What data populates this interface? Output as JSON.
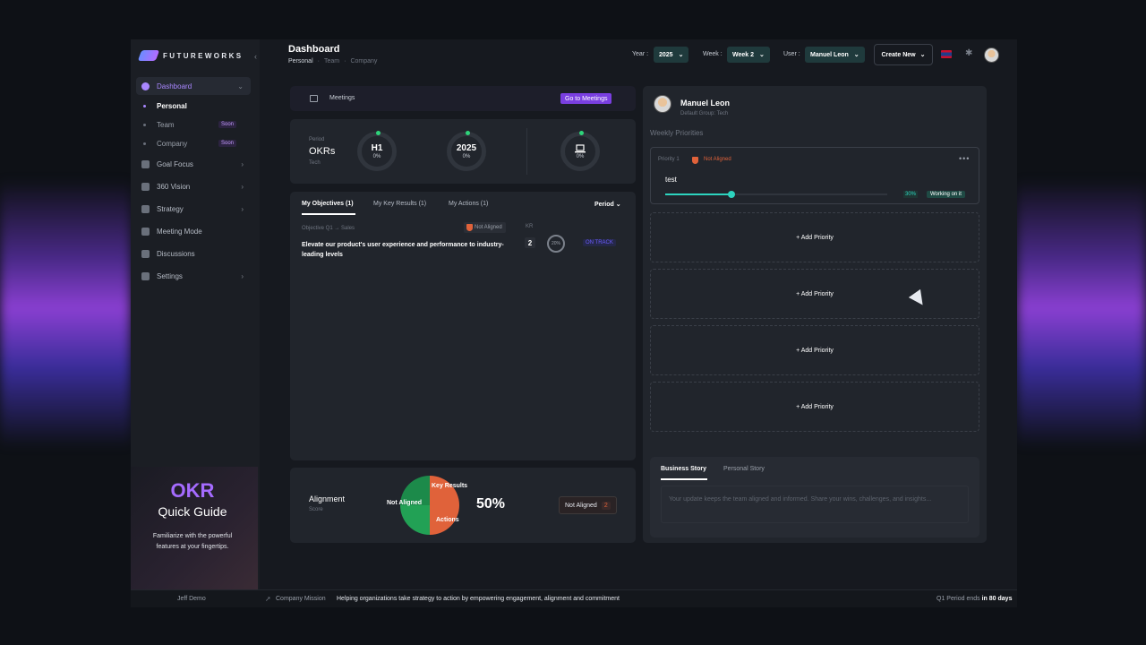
{
  "brand": {
    "name": "FUTUREWORKS"
  },
  "sidebar": {
    "items": [
      {
        "label": "Dashboard",
        "icon": "dashboard-icon",
        "active": true
      },
      {
        "label": "Goal Focus",
        "icon": "target-icon"
      },
      {
        "label": "360 Vision",
        "icon": "vision-icon"
      },
      {
        "label": "Strategy",
        "icon": "strategy-icon"
      },
      {
        "label": "Meeting Mode",
        "icon": "meeting-icon"
      },
      {
        "label": "Discussions",
        "icon": "chat-icon"
      },
      {
        "label": "Settings",
        "icon": "settings-icon"
      }
    ],
    "subitems": [
      {
        "label": "Personal",
        "active": true
      },
      {
        "label": "Team",
        "badge": "Soon"
      },
      {
        "label": "Company",
        "badge": "Soon"
      }
    ]
  },
  "guide": {
    "title": "OKR",
    "subtitle": "Quick Guide",
    "text": "Familiarize with the powerful features at your fingertips."
  },
  "header": {
    "title": "Dashboard",
    "breadcrumbs": [
      "Personal",
      "Team",
      "Company"
    ],
    "year_label": "Year :",
    "year_value": "2025",
    "week_label": "Week :",
    "week_value": "Week 2",
    "user_label": "User :",
    "user_value": "Manuel Leon",
    "create_new": "Create New"
  },
  "meetings": {
    "label": "Meetings",
    "button": "Go to Meetings"
  },
  "okrs": {
    "period_label": "Period",
    "title": "OKRs",
    "group": "Tech",
    "rings": [
      {
        "main": "H1",
        "pct": "0%"
      },
      {
        "main": "2025",
        "pct": "0%"
      },
      {
        "main": "",
        "pct": "0%",
        "icon": "laptop-icon"
      }
    ]
  },
  "objectives": {
    "tabs": [
      "My Objectives (1)",
      "My Key Results (1)",
      "My Actions (1)"
    ],
    "period": "Period",
    "meta": "Objective Q1  →  Sales",
    "alignment": "Not Aligned",
    "kr_label": "KR",
    "text": "Elevate our product's user experience and performance to industry-leading levels",
    "kr_count": "2",
    "progress": "20%",
    "status": "ON TRACK"
  },
  "alignment": {
    "title": "Alignment",
    "score_label": "Score",
    "value": "50%",
    "pie": {
      "slices": [
        {
          "label": "Not Aligned",
          "value": 50,
          "color": "#e0623a"
        },
        {
          "label": "Key Results",
          "value": 25,
          "color": "#22a155"
        },
        {
          "label": "Actions",
          "value": 25,
          "color": "#1c8a4a"
        }
      ]
    },
    "not_aligned_label": "Not Aligned",
    "not_aligned_count": "2"
  },
  "profile": {
    "name": "Manuel Leon",
    "group": "Default Group: Tech",
    "weekly_label": "Weekly Priorities"
  },
  "priority": {
    "label": "Priority 1",
    "alignment": "Not Aligned",
    "more": "•••",
    "name": "test",
    "progress": 30,
    "progress_text": "30%",
    "status": "Working on it"
  },
  "add_priority_label": "+ Add Priority",
  "story": {
    "tabs": [
      "Business Story",
      "Personal Story"
    ],
    "placeholder": "Your update keeps the team aligned and informed. Share your wins, challenges, and insights..."
  },
  "footer": {
    "user": "Jeff Demo",
    "mission_label": "Company Mission",
    "mission_text": "Helping organizations take strategy to action by empowering engagement, alignment and commitment",
    "period_prefix": "Q1 Period ends",
    "period_value": "in 80 days"
  }
}
